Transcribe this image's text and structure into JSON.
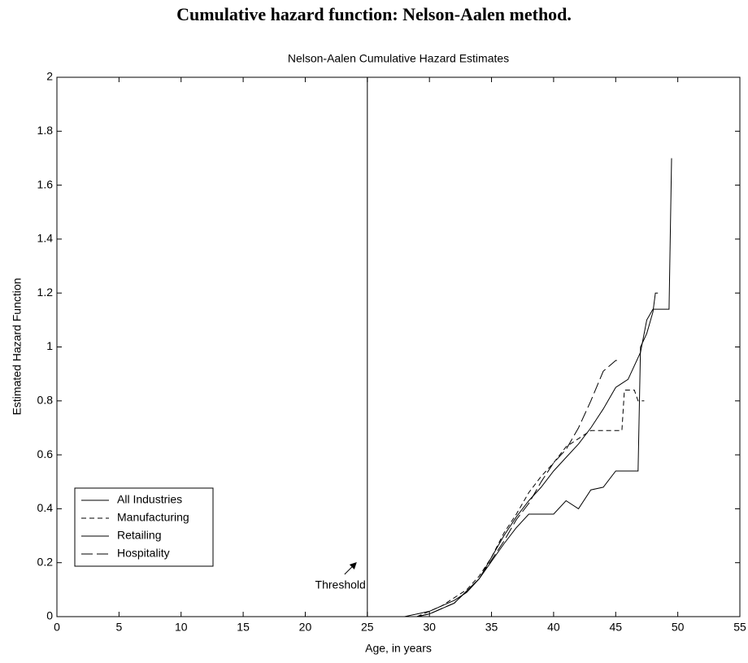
{
  "chart_data": {
    "type": "line",
    "page_title": "Cumulative hazard function: Nelson-Aalen method.",
    "title": "Nelson-Aalen Cumulative Hazard Estimates",
    "x_label": "Age, in years",
    "y_label": "Estimated Hazard Function",
    "xlim": [
      0,
      55
    ],
    "xticks": [
      0,
      5,
      10,
      15,
      20,
      25,
      30,
      35,
      40,
      45,
      50,
      55
    ],
    "ylim": [
      0,
      2
    ],
    "yticks": [
      0,
      0.2,
      0.4,
      0.6,
      0.8,
      1,
      1.2,
      1.4,
      1.6,
      1.8,
      2
    ],
    "threshold": 25,
    "threshold_label": "Threshold",
    "legend": "lower left",
    "series": [
      {
        "name": "All Industries",
        "color": "#000000",
        "dash": "none",
        "x": [
          28,
          29,
          30,
          31,
          32,
          33,
          34,
          35,
          36,
          37,
          38,
          39,
          40,
          41,
          42,
          43,
          44,
          45,
          46,
          47,
          47.5,
          48,
          49.3,
          49.5
        ],
        "values": [
          0,
          0.01,
          0.02,
          0.04,
          0.06,
          0.09,
          0.14,
          0.22,
          0.3,
          0.37,
          0.43,
          0.48,
          0.54,
          0.59,
          0.64,
          0.7,
          0.77,
          0.85,
          0.88,
          0.98,
          1.1,
          1.14,
          1.14,
          1.7
        ]
      },
      {
        "name": "Manufacturing",
        "color": "#000000",
        "dash": "6 4",
        "x": [
          29,
          30,
          31,
          32,
          33,
          34,
          35,
          36,
          37,
          38,
          39,
          40,
          41,
          42,
          43,
          45.5,
          45.7,
          46.5,
          46.8,
          47.3
        ],
        "values": [
          0,
          0.02,
          0.04,
          0.07,
          0.1,
          0.15,
          0.22,
          0.31,
          0.38,
          0.46,
          0.52,
          0.57,
          0.63,
          0.66,
          0.69,
          0.69,
          0.84,
          0.84,
          0.8,
          0.8
        ]
      },
      {
        "name": "Retailing",
        "color": "#000000",
        "dash": "none",
        "x": [
          29,
          30,
          32,
          34,
          36,
          37,
          38,
          40,
          41,
          42,
          43,
          44,
          45,
          46.8,
          47,
          47.5,
          48,
          48.2,
          48.4
        ],
        "values": [
          0,
          0.01,
          0.05,
          0.14,
          0.27,
          0.33,
          0.38,
          0.38,
          0.43,
          0.4,
          0.47,
          0.48,
          0.54,
          0.54,
          1,
          1.05,
          1.13,
          1.2,
          1.2
        ]
      },
      {
        "name": "Hospitality",
        "color": "#000000",
        "dash": "14 5",
        "x": [
          29,
          30,
          32,
          34,
          35,
          36,
          37,
          38,
          39,
          40,
          41,
          42,
          43,
          44,
          45,
          45.1
        ],
        "values": [
          0,
          0.01,
          0.05,
          0.14,
          0.21,
          0.28,
          0.36,
          0.42,
          0.5,
          0.57,
          0.62,
          0.7,
          0.8,
          0.91,
          0.95,
          0.95
        ]
      }
    ]
  }
}
